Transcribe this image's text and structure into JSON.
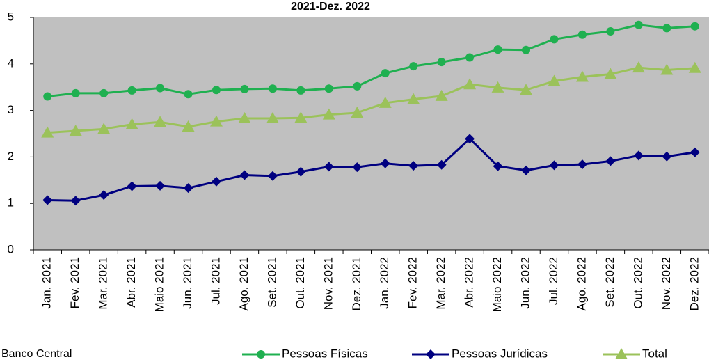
{
  "chart_data": {
    "type": "line",
    "title": "2021-Dez. 2022",
    "source": "Banco Central",
    "categories": [
      "Jan. 2021",
      "Fev. 2021",
      "Mar. 2021",
      "Abr. 2021",
      "Maio 2021",
      "Jun. 2021",
      "Jul. 2021",
      "Ago. 2021",
      "Set. 2021",
      "Out. 2021",
      "Nov. 2021",
      "Dez. 2021",
      "Jan. 2022",
      "Fev. 2022",
      "Mar. 2022",
      "Abr. 2022",
      "Maio 2022",
      "Jun. 2022",
      "Jul. 2022",
      "Ago. 2022",
      "Set. 2022",
      "Out. 2022",
      "Nov. 2022",
      "Dez. 2022"
    ],
    "series": [
      {
        "name": "Pessoas Físicas",
        "color": "#1fb050",
        "marker": "circle",
        "values": [
          3.3,
          3.37,
          3.37,
          3.43,
          3.48,
          3.35,
          3.44,
          3.46,
          3.47,
          3.43,
          3.47,
          3.52,
          3.8,
          3.95,
          4.04,
          4.14,
          4.31,
          4.3,
          4.53,
          4.63,
          4.7,
          4.84,
          4.77,
          4.81
        ]
      },
      {
        "name": "Pessoas Jurídicas",
        "color": "#000080",
        "marker": "diamond",
        "values": [
          1.07,
          1.06,
          1.18,
          1.37,
          1.38,
          1.33,
          1.47,
          1.61,
          1.59,
          1.68,
          1.79,
          1.78,
          1.86,
          1.81,
          1.83,
          2.39,
          1.8,
          1.71,
          1.82,
          1.84,
          1.91,
          2.03,
          2.01,
          2.1
        ]
      },
      {
        "name": "Total",
        "color": "#9bc25a",
        "marker": "triangle",
        "values": [
          2.52,
          2.56,
          2.6,
          2.7,
          2.75,
          2.65,
          2.76,
          2.83,
          2.83,
          2.84,
          2.91,
          2.95,
          3.16,
          3.24,
          3.31,
          3.56,
          3.49,
          3.44,
          3.63,
          3.72,
          3.78,
          3.92,
          3.87,
          3.91
        ]
      }
    ],
    "ylim": [
      0,
      5
    ],
    "yticks": [
      0,
      1,
      2,
      3,
      4,
      5
    ],
    "grid": false,
    "legend": "bottom"
  }
}
